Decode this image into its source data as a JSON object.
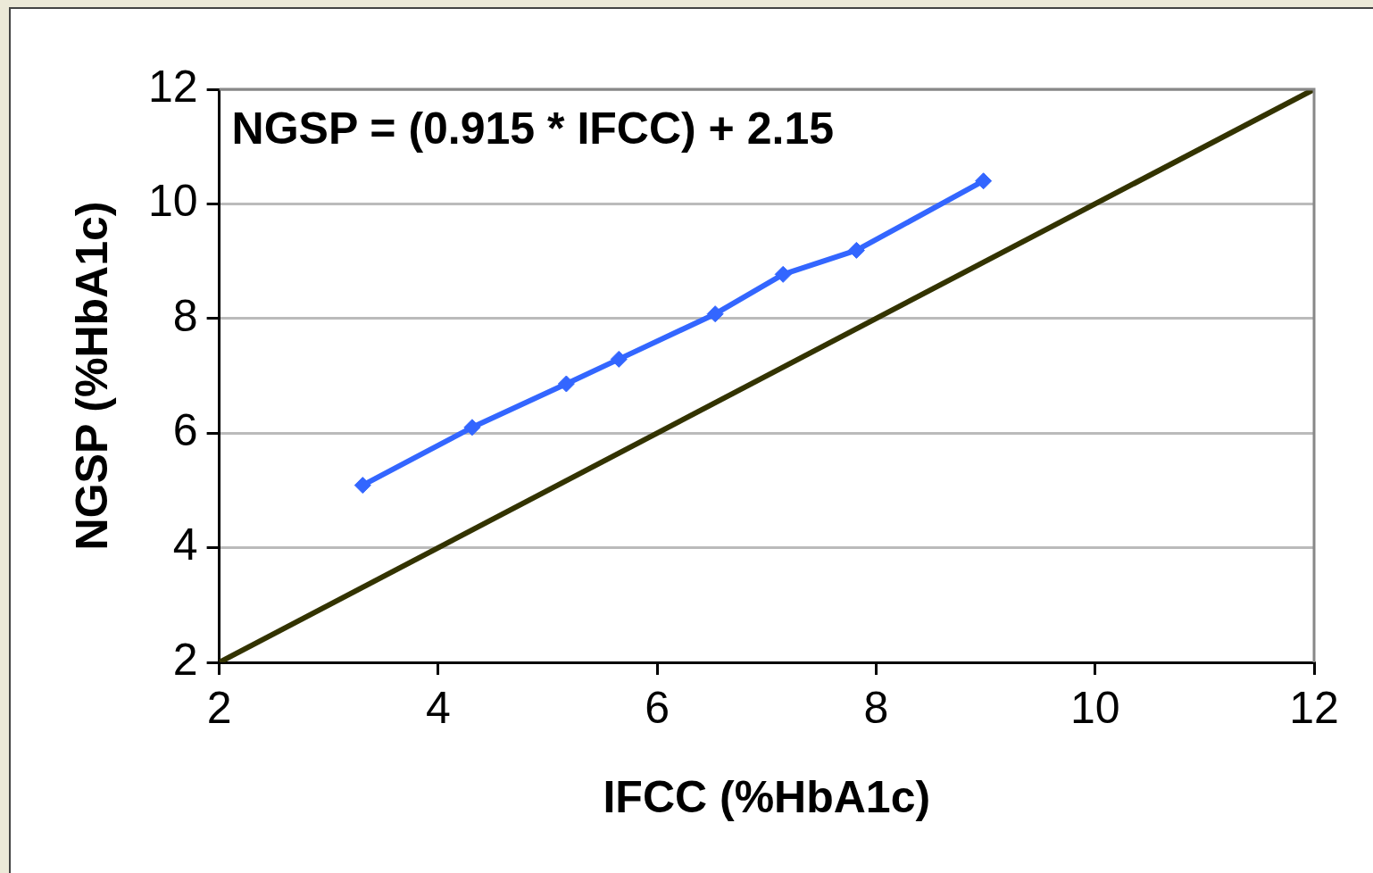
{
  "chart_data": {
    "type": "line",
    "xlabel": "IFCC (%HbA1c)",
    "ylabel": "NGSP (%HbA1c)",
    "annotations": [
      "NGSP = (0.915 * IFCC) + 2.15"
    ],
    "series": [
      {
        "color": "#3366ff",
        "marker": "diamond",
        "x": [
          3.31,
          4.31,
          5.17,
          5.65,
          6.53,
          7.15,
          7.82,
          8.98
        ],
        "values": [
          5.09,
          6.1,
          6.86,
          7.29,
          8.08,
          8.77,
          9.19,
          10.4
        ]
      },
      {
        "color": "#333300",
        "marker": "none",
        "x": [
          2,
          12
        ],
        "values": [
          2,
          12
        ]
      }
    ],
    "xlim": [
      2,
      12
    ],
    "xticks": [
      2,
      4,
      6,
      8,
      10,
      12
    ],
    "ylim": [
      2,
      12
    ],
    "yticks": [
      2,
      4,
      6,
      8,
      10,
      12
    ],
    "grid": "y",
    "legend": false
  }
}
